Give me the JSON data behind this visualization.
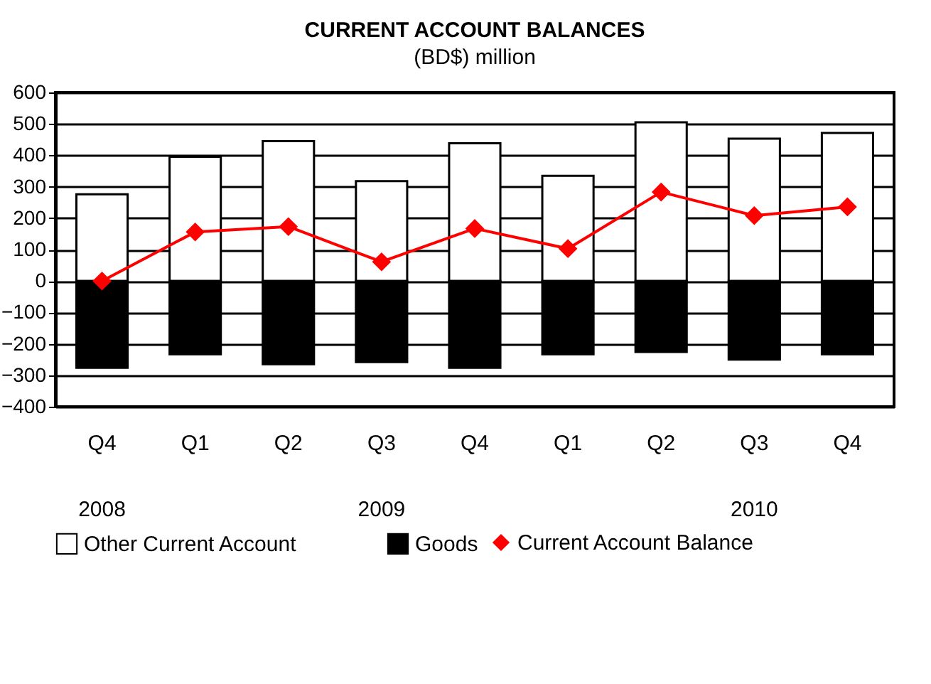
{
  "chart_data": {
    "type": "bar",
    "title": "CURRENT ACCOUNT BALANCES",
    "subtitle": "(BD$) million",
    "categories": [
      "Q4",
      "Q1",
      "Q2",
      "Q3",
      "Q4",
      "Q1",
      "Q2",
      "Q3",
      "Q4"
    ],
    "annotations": [
      "2008",
      "2009",
      "2010"
    ],
    "stacked": true,
    "series": [
      {
        "name": "Other Current Account",
        "color": "#ffffff",
        "values": [
          276,
          395,
          445,
          318,
          438,
          335,
          505,
          453,
          471
        ]
      },
      {
        "name": "Goods",
        "color": "#000000",
        "values": [
          -276,
          -233,
          -265,
          -258,
          -276,
          -233,
          -226,
          -250,
          -233
        ]
      },
      {
        "name": "Current Account Balance",
        "type": "line",
        "color": "#ff0000",
        "marker": "diamond",
        "values": [
          0,
          156,
          173,
          61,
          167,
          103,
          283,
          208,
          236
        ]
      }
    ],
    "ylim": [
      -400,
      600
    ],
    "yticks": [
      -400,
      -300,
      -200,
      -100,
      0,
      100,
      200,
      300,
      400,
      500,
      600
    ],
    "grid": "y",
    "legend": "bottom"
  }
}
